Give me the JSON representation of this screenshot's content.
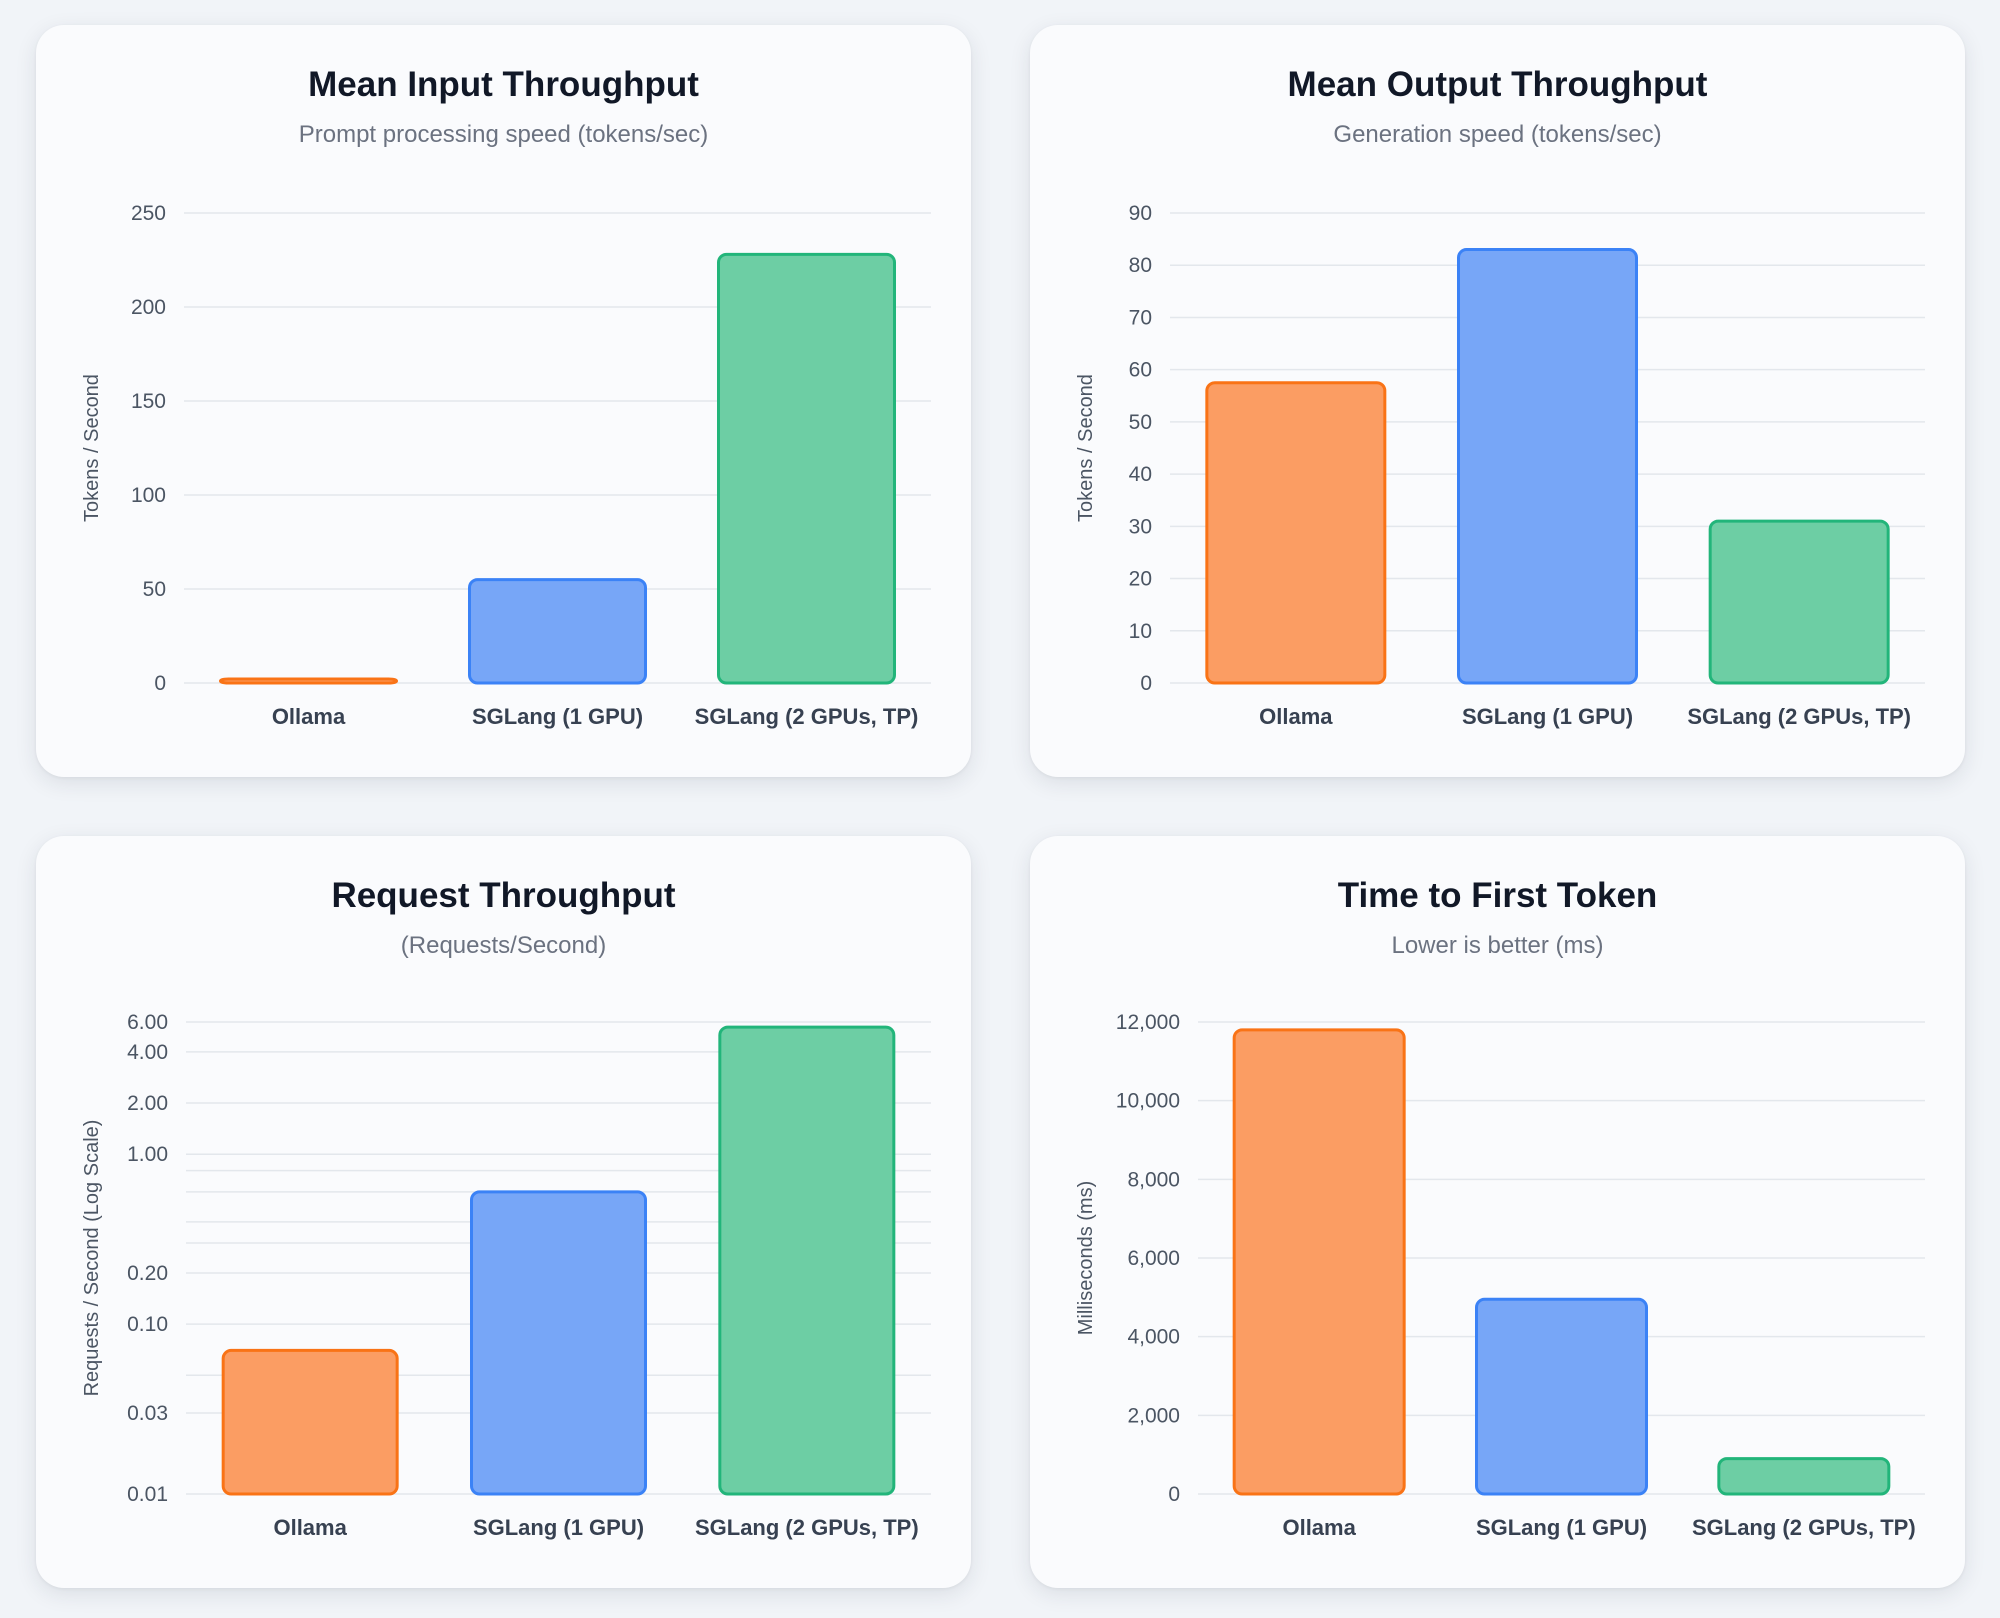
{
  "colors": {
    "ollama_fill": "#fb9d63",
    "ollama_stroke": "#f97316",
    "sglang1_fill": "#77a6f7",
    "sglang1_stroke": "#3b82f6",
    "sglang2_fill": "#6dcea4",
    "sglang2_stroke": "#22b57a"
  },
  "chart_data": [
    {
      "type": "bar",
      "title": "Mean Input Throughput",
      "subtitle": "Prompt processing speed (tokens/sec)",
      "xlabel": "",
      "ylabel": "Tokens / Second",
      "scale": "linear",
      "ylim": [
        0,
        250
      ],
      "ticks": [
        0,
        50,
        100,
        150,
        200,
        250
      ],
      "tick_labels": [
        "0",
        "50",
        "100",
        "150",
        "200",
        "250"
      ],
      "categories": [
        "Ollama",
        "SGLang (1 GPU)",
        "SGLang (2 GPUs, TP)"
      ],
      "values": [
        1.5,
        55,
        228
      ]
    },
    {
      "type": "bar",
      "title": "Mean Output Throughput",
      "subtitle": "Generation speed (tokens/sec)",
      "xlabel": "",
      "ylabel": "Tokens / Second",
      "scale": "linear",
      "ylim": [
        0,
        90
      ],
      "ticks": [
        0,
        10,
        20,
        30,
        40,
        50,
        60,
        70,
        80,
        90
      ],
      "tick_labels": [
        "0",
        "10",
        "20",
        "30",
        "40",
        "50",
        "60",
        "70",
        "80",
        "90"
      ],
      "categories": [
        "Ollama",
        "SGLang (1 GPU)",
        "SGLang (2 GPUs, TP)"
      ],
      "values": [
        57.5,
        83,
        31
      ]
    },
    {
      "type": "bar",
      "title": "Request Throughput",
      "subtitle": "(Requests/Second)",
      "xlabel": "",
      "ylabel": "Requests / Second (Log Scale)",
      "scale": "log",
      "ylim": [
        0.01,
        6
      ],
      "ticks": [
        0.01,
        0.03,
        0.1,
        0.2,
        1,
        2,
        4,
        6
      ],
      "tick_labels": [
        "0.01",
        "0.03",
        "0.10",
        "0.20",
        "1.00",
        "2.00",
        "4.00",
        "6.00"
      ],
      "minor_grid": [
        0.05,
        0.3,
        0.4,
        0.6,
        0.8
      ],
      "categories": [
        "Ollama",
        "SGLang (1 GPU)",
        "SGLang (2 GPUs, TP)"
      ],
      "values": [
        0.07,
        0.6,
        5.6
      ]
    },
    {
      "type": "bar",
      "title": "Time to First Token",
      "subtitle": "Lower is better (ms)",
      "xlabel": "",
      "ylabel": "Milliseconds (ms)",
      "scale": "linear",
      "ylim": [
        0,
        12000
      ],
      "ticks": [
        0,
        2000,
        4000,
        6000,
        8000,
        10000,
        12000
      ],
      "tick_labels": [
        "0",
        "2,000",
        "4,000",
        "6,000",
        "8,000",
        "10,000",
        "12,000"
      ],
      "categories": [
        "Ollama",
        "SGLang (1 GPU)",
        "SGLang (2 GPUs, TP)"
      ],
      "values": [
        11800,
        4950,
        900
      ]
    }
  ]
}
